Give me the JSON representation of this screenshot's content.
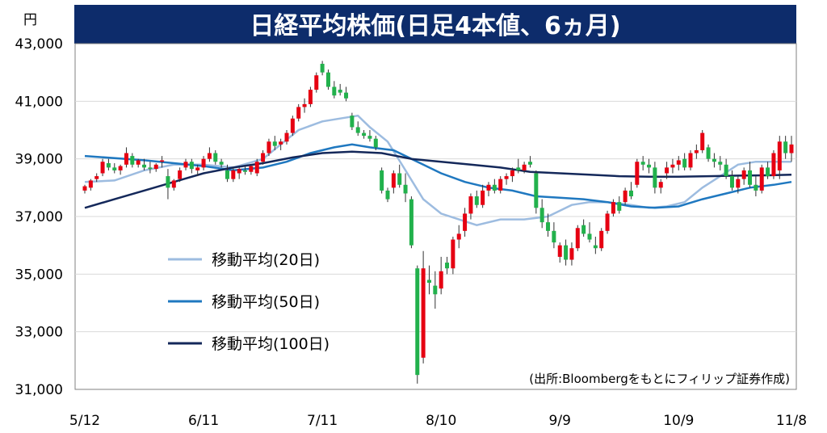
{
  "chart_data": {
    "type": "candlestick",
    "title": "日経平均株価(日足4本値、6ヵ月)",
    "yunit": "円",
    "source": "(出所:Bloombergをもとにフィリップ証券作成)",
    "ylim": [
      31000,
      43000
    ],
    "yticks": [
      31000,
      33000,
      35000,
      37000,
      39000,
      41000,
      43000
    ],
    "ytick_labels": [
      "31,000",
      "33,000",
      "35,000",
      "37,000",
      "39,000",
      "41,000",
      "43,000"
    ],
    "xticks": [
      {
        "label": "5/12",
        "index": 0
      },
      {
        "label": "6/11",
        "index": 20
      },
      {
        "label": "7/11",
        "index": 40
      },
      {
        "label": "8/10",
        "index": 60
      },
      {
        "label": "9/9",
        "index": 80
      },
      {
        "label": "10/9",
        "index": 100
      },
      {
        "label": "11/8",
        "index": 119
      }
    ],
    "grid": true,
    "colors": {
      "up": "#e60012",
      "down": "#22b14c",
      "ma20": "#9dbce0",
      "ma50": "#1f78c0",
      "ma100": "#14285a",
      "title_bg": "#0d2c6b"
    },
    "legend": [
      {
        "key": "ma20",
        "label": "移動平均(20日)"
      },
      {
        "key": "ma50",
        "label": "移動平均(50日)"
      },
      {
        "key": "ma100",
        "label": "移動平均(100日)"
      }
    ],
    "candles": [
      {
        "o": 37900,
        "h": 38100,
        "l": 37800,
        "c": 38050
      },
      {
        "o": 38000,
        "h": 38300,
        "l": 37900,
        "c": 38250
      },
      {
        "o": 38300,
        "h": 38500,
        "l": 38200,
        "c": 38400
      },
      {
        "o": 38500,
        "h": 39000,
        "l": 38400,
        "c": 38900
      },
      {
        "o": 38850,
        "h": 39000,
        "l": 38600,
        "c": 38700
      },
      {
        "o": 38700,
        "h": 38850,
        "l": 38500,
        "c": 38600
      },
      {
        "o": 38600,
        "h": 38800,
        "l": 38450,
        "c": 38750
      },
      {
        "o": 38800,
        "h": 39400,
        "l": 38700,
        "c": 39200
      },
      {
        "o": 39100,
        "h": 39200,
        "l": 38700,
        "c": 38800
      },
      {
        "o": 38800,
        "h": 39000,
        "l": 38700,
        "c": 38950
      },
      {
        "o": 38800,
        "h": 39000,
        "l": 38600,
        "c": 38700
      },
      {
        "o": 38700,
        "h": 38900,
        "l": 38500,
        "c": 38650
      },
      {
        "o": 38650,
        "h": 38850,
        "l": 38550,
        "c": 38800
      },
      {
        "o": 38900,
        "h": 39100,
        "l": 38700,
        "c": 38950
      },
      {
        "o": 38400,
        "h": 38650,
        "l": 37600,
        "c": 38000
      },
      {
        "o": 38000,
        "h": 38300,
        "l": 37900,
        "c": 38250
      },
      {
        "o": 38300,
        "h": 38700,
        "l": 38200,
        "c": 38600
      },
      {
        "o": 38700,
        "h": 39000,
        "l": 38600,
        "c": 38900
      },
      {
        "o": 38900,
        "h": 39000,
        "l": 38500,
        "c": 38650
      },
      {
        "o": 38600,
        "h": 38800,
        "l": 38400,
        "c": 38700
      },
      {
        "o": 38700,
        "h": 39100,
        "l": 38600,
        "c": 39000
      },
      {
        "o": 39000,
        "h": 39400,
        "l": 38900,
        "c": 39200
      },
      {
        "o": 39200,
        "h": 39300,
        "l": 38800,
        "c": 38900
      },
      {
        "o": 38900,
        "h": 39000,
        "l": 38700,
        "c": 38800
      },
      {
        "o": 38600,
        "h": 38800,
        "l": 38200,
        "c": 38300
      },
      {
        "o": 38300,
        "h": 38700,
        "l": 38200,
        "c": 38600
      },
      {
        "o": 38500,
        "h": 38700,
        "l": 38300,
        "c": 38650
      },
      {
        "o": 38600,
        "h": 38750,
        "l": 38450,
        "c": 38550
      },
      {
        "o": 38550,
        "h": 38800,
        "l": 38450,
        "c": 38750
      },
      {
        "o": 38500,
        "h": 39000,
        "l": 38400,
        "c": 38900
      },
      {
        "o": 38900,
        "h": 39300,
        "l": 38800,
        "c": 39200
      },
      {
        "o": 39200,
        "h": 39700,
        "l": 39100,
        "c": 39600
      },
      {
        "o": 39600,
        "h": 39800,
        "l": 39300,
        "c": 39450
      },
      {
        "o": 39500,
        "h": 39700,
        "l": 39300,
        "c": 39600
      },
      {
        "o": 39600,
        "h": 40000,
        "l": 39500,
        "c": 39900
      },
      {
        "o": 39900,
        "h": 40500,
        "l": 39800,
        "c": 40400
      },
      {
        "o": 40400,
        "h": 40900,
        "l": 40300,
        "c": 40800
      },
      {
        "o": 40800,
        "h": 41100,
        "l": 40600,
        "c": 40900
      },
      {
        "o": 40900,
        "h": 41500,
        "l": 40800,
        "c": 41400
      },
      {
        "o": 41400,
        "h": 42000,
        "l": 41300,
        "c": 41900
      },
      {
        "o": 42300,
        "h": 42400,
        "l": 41900,
        "c": 42000
      },
      {
        "o": 42000,
        "h": 42100,
        "l": 41400,
        "c": 41500
      },
      {
        "o": 41500,
        "h": 41700,
        "l": 41100,
        "c": 41200
      },
      {
        "o": 41400,
        "h": 41600,
        "l": 41200,
        "c": 41300
      },
      {
        "o": 41300,
        "h": 41500,
        "l": 41000,
        "c": 41100
      },
      {
        "o": 40500,
        "h": 40600,
        "l": 40000,
        "c": 40100
      },
      {
        "o": 40100,
        "h": 40300,
        "l": 39800,
        "c": 39900
      },
      {
        "o": 39900,
        "h": 40000,
        "l": 39700,
        "c": 39800
      },
      {
        "o": 39800,
        "h": 40000,
        "l": 39600,
        "c": 39700
      },
      {
        "o": 39700,
        "h": 39800,
        "l": 39300,
        "c": 39400
      },
      {
        "o": 38600,
        "h": 38700,
        "l": 37800,
        "c": 37900
      },
      {
        "o": 37900,
        "h": 38000,
        "l": 37500,
        "c": 37600
      },
      {
        "o": 38000,
        "h": 38600,
        "l": 37800,
        "c": 38500
      },
      {
        "o": 38500,
        "h": 38800,
        "l": 38000,
        "c": 38100
      },
      {
        "o": 38100,
        "h": 38500,
        "l": 37500,
        "c": 37800
      },
      {
        "o": 37600,
        "h": 37700,
        "l": 35900,
        "c": 36000
      },
      {
        "o": 35200,
        "h": 35300,
        "l": 31200,
        "c": 31500
      },
      {
        "o": 32100,
        "h": 35800,
        "l": 31900,
        "c": 35200
      },
      {
        "o": 34800,
        "h": 35300,
        "l": 34300,
        "c": 34700
      },
      {
        "o": 34600,
        "h": 35100,
        "l": 33800,
        "c": 34300
      },
      {
        "o": 34500,
        "h": 35600,
        "l": 34300,
        "c": 35100
      },
      {
        "o": 35400,
        "h": 35600,
        "l": 35000,
        "c": 35200
      },
      {
        "o": 35200,
        "h": 36300,
        "l": 35000,
        "c": 36200
      },
      {
        "o": 36200,
        "h": 36700,
        "l": 35900,
        "c": 36400
      },
      {
        "o": 36500,
        "h": 37300,
        "l": 36300,
        "c": 37100
      },
      {
        "o": 37100,
        "h": 37800,
        "l": 36900,
        "c": 37700
      },
      {
        "o": 37700,
        "h": 37900,
        "l": 37300,
        "c": 37400
      },
      {
        "o": 37400,
        "h": 38100,
        "l": 37300,
        "c": 37900
      },
      {
        "o": 37900,
        "h": 38200,
        "l": 37700,
        "c": 38100
      },
      {
        "o": 38100,
        "h": 38300,
        "l": 37800,
        "c": 37900
      },
      {
        "o": 37900,
        "h": 38400,
        "l": 37800,
        "c": 38300
      },
      {
        "o": 38300,
        "h": 38500,
        "l": 38100,
        "c": 38400
      },
      {
        "o": 38400,
        "h": 38700,
        "l": 38200,
        "c": 38600
      },
      {
        "o": 38700,
        "h": 39000,
        "l": 38500,
        "c": 38600
      },
      {
        "o": 38600,
        "h": 38900,
        "l": 38500,
        "c": 38800
      },
      {
        "o": 38900,
        "h": 39100,
        "l": 38700,
        "c": 38800
      },
      {
        "o": 38500,
        "h": 38600,
        "l": 37100,
        "c": 37300
      },
      {
        "o": 37300,
        "h": 37600,
        "l": 36600,
        "c": 36800
      },
      {
        "o": 36800,
        "h": 37100,
        "l": 36300,
        "c": 36500
      },
      {
        "o": 36500,
        "h": 36800,
        "l": 35900,
        "c": 36100
      },
      {
        "o": 35600,
        "h": 36100,
        "l": 35400,
        "c": 36000
      },
      {
        "o": 36000,
        "h": 36200,
        "l": 35300,
        "c": 35500
      },
      {
        "o": 35500,
        "h": 36100,
        "l": 35300,
        "c": 35900
      },
      {
        "o": 35900,
        "h": 36700,
        "l": 35800,
        "c": 36600
      },
      {
        "o": 36700,
        "h": 36900,
        "l": 36300,
        "c": 36400
      },
      {
        "o": 36400,
        "h": 36800,
        "l": 36100,
        "c": 36200
      },
      {
        "o": 36000,
        "h": 36300,
        "l": 35700,
        "c": 35900
      },
      {
        "o": 35900,
        "h": 36600,
        "l": 35800,
        "c": 36500
      },
      {
        "o": 36500,
        "h": 37200,
        "l": 36400,
        "c": 37100
      },
      {
        "o": 37100,
        "h": 37600,
        "l": 37000,
        "c": 37500
      },
      {
        "o": 37500,
        "h": 37700,
        "l": 37100,
        "c": 37200
      },
      {
        "o": 37500,
        "h": 38000,
        "l": 37400,
        "c": 37900
      },
      {
        "o": 37900,
        "h": 38200,
        "l": 37600,
        "c": 37700
      },
      {
        "o": 38100,
        "h": 39000,
        "l": 38000,
        "c": 38900
      },
      {
        "o": 38900,
        "h": 39100,
        "l": 38600,
        "c": 38800
      },
      {
        "o": 38800,
        "h": 39000,
        "l": 38500,
        "c": 38700
      },
      {
        "o": 38700,
        "h": 38900,
        "l": 37800,
        "c": 38000
      },
      {
        "o": 38000,
        "h": 38300,
        "l": 37800,
        "c": 38200
      },
      {
        "o": 38500,
        "h": 38900,
        "l": 38300,
        "c": 38700
      },
      {
        "o": 38700,
        "h": 39000,
        "l": 38500,
        "c": 38800
      },
      {
        "o": 38800,
        "h": 39100,
        "l": 38600,
        "c": 38950
      },
      {
        "o": 39000,
        "h": 39200,
        "l": 38600,
        "c": 38700
      },
      {
        "o": 38700,
        "h": 39300,
        "l": 38600,
        "c": 39200
      },
      {
        "o": 39200,
        "h": 39500,
        "l": 39000,
        "c": 39300
      },
      {
        "o": 39300,
        "h": 40000,
        "l": 39200,
        "c": 39900
      },
      {
        "o": 39400,
        "h": 39500,
        "l": 38900,
        "c": 39000
      },
      {
        "o": 39000,
        "h": 39200,
        "l": 38700,
        "c": 38900
      },
      {
        "o": 38900,
        "h": 39100,
        "l": 38600,
        "c": 38800
      },
      {
        "o": 38800,
        "h": 39000,
        "l": 38300,
        "c": 38400
      },
      {
        "o": 38400,
        "h": 38600,
        "l": 37900,
        "c": 38000
      },
      {
        "o": 38000,
        "h": 38400,
        "l": 37800,
        "c": 38300
      },
      {
        "o": 38300,
        "h": 38700,
        "l": 38100,
        "c": 38600
      },
      {
        "o": 38600,
        "h": 38900,
        "l": 38000,
        "c": 38100
      },
      {
        "o": 38100,
        "h": 38400,
        "l": 37700,
        "c": 37900
      },
      {
        "o": 37900,
        "h": 38800,
        "l": 37800,
        "c": 38700
      },
      {
        "o": 38700,
        "h": 38900,
        "l": 38300,
        "c": 38400
      },
      {
        "o": 38400,
        "h": 39300,
        "l": 38300,
        "c": 39200
      },
      {
        "o": 38600,
        "h": 39800,
        "l": 38300,
        "c": 39600
      },
      {
        "o": 39600,
        "h": 39800,
        "l": 39000,
        "c": 39200
      },
      {
        "o": 39200,
        "h": 39800,
        "l": 38900,
        "c": 39500
      }
    ],
    "series": [
      {
        "key": "ma20",
        "points": [
          [
            0,
            38200
          ],
          [
            5,
            38250
          ],
          [
            10,
            38600
          ],
          [
            15,
            38800
          ],
          [
            20,
            38800
          ],
          [
            25,
            38700
          ],
          [
            30,
            39000
          ],
          [
            33,
            39500
          ],
          [
            36,
            40000
          ],
          [
            40,
            40300
          ],
          [
            43,
            40400
          ],
          [
            46,
            40500
          ],
          [
            48,
            40100
          ],
          [
            51,
            39600
          ],
          [
            54,
            38600
          ],
          [
            57,
            37600
          ],
          [
            60,
            37100
          ],
          [
            63,
            36900
          ],
          [
            66,
            36700
          ],
          [
            70,
            36900
          ],
          [
            74,
            36900
          ],
          [
            78,
            37000
          ],
          [
            80,
            37200
          ],
          [
            82,
            37400
          ],
          [
            85,
            37500
          ],
          [
            88,
            37500
          ],
          [
            92,
            37400
          ],
          [
            95,
            37300
          ],
          [
            98,
            37350
          ],
          [
            101,
            37500
          ],
          [
            104,
            38000
          ],
          [
            107,
            38400
          ],
          [
            110,
            38800
          ],
          [
            113,
            38900
          ],
          [
            116,
            38900
          ],
          [
            119,
            38900
          ]
        ]
      },
      {
        "key": "ma50",
        "points": [
          [
            0,
            39100
          ],
          [
            10,
            38950
          ],
          [
            20,
            38750
          ],
          [
            25,
            38600
          ],
          [
            30,
            38700
          ],
          [
            34,
            38900
          ],
          [
            38,
            39200
          ],
          [
            42,
            39400
          ],
          [
            45,
            39500
          ],
          [
            48,
            39400
          ],
          [
            52,
            39300
          ],
          [
            56,
            38900
          ],
          [
            60,
            38500
          ],
          [
            64,
            38200
          ],
          [
            68,
            38000
          ],
          [
            72,
            37900
          ],
          [
            76,
            37700
          ],
          [
            80,
            37650
          ],
          [
            84,
            37600
          ],
          [
            88,
            37500
          ],
          [
            92,
            37350
          ],
          [
            96,
            37300
          ],
          [
            100,
            37350
          ],
          [
            104,
            37600
          ],
          [
            108,
            37800
          ],
          [
            112,
            38000
          ],
          [
            116,
            38100
          ],
          [
            119,
            38200
          ]
        ]
      },
      {
        "key": "ma100",
        "points": [
          [
            0,
            37300
          ],
          [
            5,
            37600
          ],
          [
            10,
            37900
          ],
          [
            15,
            38200
          ],
          [
            20,
            38500
          ],
          [
            25,
            38700
          ],
          [
            30,
            38850
          ],
          [
            35,
            39050
          ],
          [
            40,
            39200
          ],
          [
            45,
            39250
          ],
          [
            50,
            39200
          ],
          [
            55,
            39000
          ],
          [
            60,
            38900
          ],
          [
            65,
            38800
          ],
          [
            70,
            38700
          ],
          [
            75,
            38550
          ],
          [
            80,
            38500
          ],
          [
            85,
            38450
          ],
          [
            90,
            38400
          ],
          [
            95,
            38380
          ],
          [
            100,
            38380
          ],
          [
            105,
            38400
          ],
          [
            110,
            38420
          ],
          [
            115,
            38430
          ],
          [
            119,
            38450
          ]
        ]
      }
    ]
  }
}
